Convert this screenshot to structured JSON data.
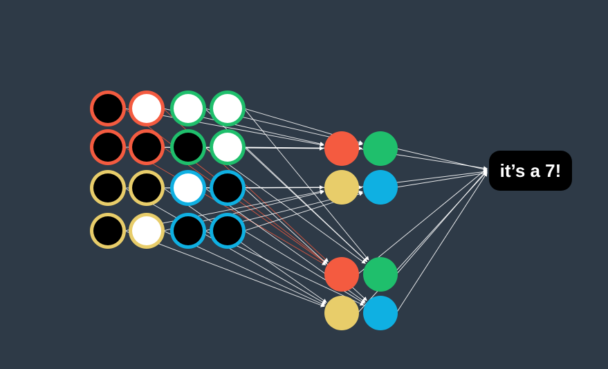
{
  "output": {
    "label": "it’s a 7!"
  },
  "colors": {
    "background": "#2e3a47",
    "red": "#f45b40",
    "green": "#1fbf6c",
    "yellow": "#e8cd6a",
    "blue": "#0fb0e2",
    "pixel_on": "#ffffff",
    "pixel_off": "#000000",
    "edge": "#ffffff",
    "edge_highlight": "#f45b40"
  },
  "input_grid": {
    "rows": [
      [
        {
          "value": "black",
          "ring": "red"
        },
        {
          "value": "white",
          "ring": "red"
        },
        {
          "value": "white",
          "ring": "green"
        },
        {
          "value": "white",
          "ring": "green"
        }
      ],
      [
        {
          "value": "black",
          "ring": "red"
        },
        {
          "value": "black",
          "ring": "red"
        },
        {
          "value": "black",
          "ring": "green"
        },
        {
          "value": "white",
          "ring": "green"
        }
      ],
      [
        {
          "value": "black",
          "ring": "yellow"
        },
        {
          "value": "black",
          "ring": "yellow"
        },
        {
          "value": "white",
          "ring": "blue"
        },
        {
          "value": "black",
          "ring": "blue"
        }
      ],
      [
        {
          "value": "black",
          "ring": "yellow"
        },
        {
          "value": "white",
          "ring": "yellow"
        },
        {
          "value": "black",
          "ring": "blue"
        },
        {
          "value": "black",
          "ring": "blue"
        }
      ]
    ]
  },
  "hidden_layer": {
    "groups": [
      [
        "red",
        "green",
        "yellow",
        "blue"
      ],
      [
        "red",
        "green",
        "yellow",
        "blue"
      ]
    ]
  }
}
